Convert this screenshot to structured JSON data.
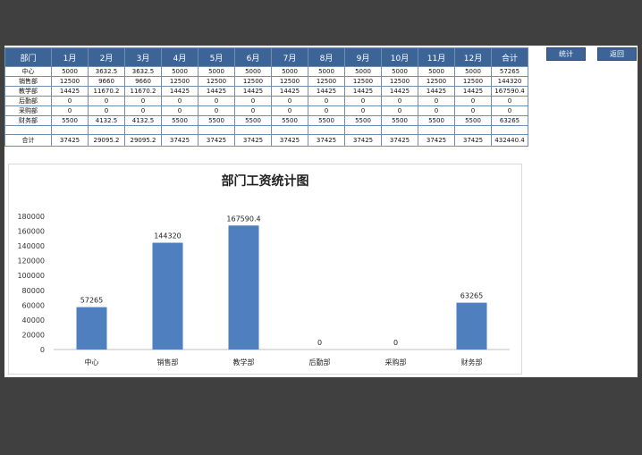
{
  "table": {
    "headers": [
      "部门",
      "1月",
      "2月",
      "3月",
      "4月",
      "5月",
      "6月",
      "7月",
      "8月",
      "9月",
      "10月",
      "11月",
      "12月",
      "合计"
    ],
    "rows": [
      [
        "中心",
        "5000",
        "3632.5",
        "3632.5",
        "5000",
        "5000",
        "5000",
        "5000",
        "5000",
        "5000",
        "5000",
        "5000",
        "5000",
        "57265"
      ],
      [
        "销售部",
        "12500",
        "9660",
        "9660",
        "12500",
        "12500",
        "12500",
        "12500",
        "12500",
        "12500",
        "12500",
        "12500",
        "12500",
        "144320"
      ],
      [
        "教学部",
        "14425",
        "11670.2",
        "11670.2",
        "14425",
        "14425",
        "14425",
        "14425",
        "14425",
        "14425",
        "14425",
        "14425",
        "14425",
        "167590.4"
      ],
      [
        "后勤部",
        "0",
        "0",
        "0",
        "0",
        "0",
        "0",
        "0",
        "0",
        "0",
        "0",
        "0",
        "0",
        "0"
      ],
      [
        "采购部",
        "0",
        "0",
        "0",
        "0",
        "0",
        "0",
        "0",
        "0",
        "0",
        "0",
        "0",
        "0",
        "0"
      ],
      [
        "财务部",
        "5500",
        "4132.5",
        "4132.5",
        "5500",
        "5500",
        "5500",
        "5500",
        "5500",
        "5500",
        "5500",
        "5500",
        "5500",
        "63265"
      ]
    ],
    "total": [
      "合计",
      "37425",
      "29095.2",
      "29095.2",
      "37425",
      "37425",
      "37425",
      "37425",
      "37425",
      "37425",
      "37425",
      "37425",
      "37425",
      "432440.4"
    ]
  },
  "buttons": {
    "stats": "统计",
    "back": "返回"
  },
  "colors": {
    "header": "#3c6496",
    "bar": "#4f7fbe",
    "background": "#404040"
  },
  "chart_data": {
    "type": "bar",
    "title": "部门工资统计图",
    "categories": [
      "中心",
      "销售部",
      "教学部",
      "后勤部",
      "采购部",
      "财务部"
    ],
    "values": [
      57265,
      144320,
      167590.4,
      0,
      0,
      63265
    ],
    "value_labels": [
      "57265",
      "144320",
      "167590.4",
      "0",
      "0",
      "63265"
    ],
    "yticks": [
      "0",
      "20000",
      "40000",
      "60000",
      "80000",
      "100000",
      "120000",
      "140000",
      "160000",
      "180000"
    ],
    "ylim": [
      0,
      180000
    ],
    "grid": false,
    "legend": false
  }
}
